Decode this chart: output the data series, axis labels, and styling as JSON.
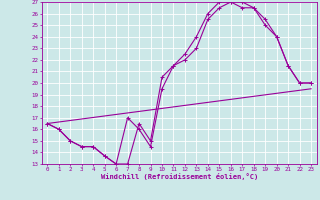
{
  "xlabel": "Windchill (Refroidissement éolien,°C)",
  "background_color": "#cce8e8",
  "line_color": "#990099",
  "grid_color": "#ffffff",
  "xlim": [
    -0.5,
    23.5
  ],
  "ylim": [
    13,
    27
  ],
  "xticks": [
    0,
    1,
    2,
    3,
    4,
    5,
    6,
    7,
    8,
    9,
    10,
    11,
    12,
    13,
    14,
    15,
    16,
    17,
    18,
    19,
    20,
    21,
    22,
    23
  ],
  "yticks": [
    13,
    14,
    15,
    16,
    17,
    18,
    19,
    20,
    21,
    22,
    23,
    24,
    25,
    26,
    27
  ],
  "line1_x": [
    0,
    1,
    2,
    3,
    4,
    5,
    6,
    7,
    8,
    9,
    10,
    11,
    12,
    13,
    14,
    15,
    16,
    17,
    18,
    19,
    20,
    21,
    22,
    23
  ],
  "line1_y": [
    16.5,
    16.0,
    15.0,
    14.5,
    14.5,
    13.7,
    13.0,
    13.0,
    16.5,
    15.0,
    20.5,
    21.5,
    22.5,
    24.0,
    26.0,
    27.0,
    27.0,
    27.0,
    26.5,
    25.5,
    24.0,
    21.5,
    20.0,
    20.0
  ],
  "line2_x": [
    0,
    1,
    2,
    3,
    4,
    5,
    6,
    7,
    8,
    9,
    10,
    11,
    12,
    13,
    14,
    15,
    16,
    17,
    18,
    19,
    20,
    21,
    22,
    23
  ],
  "line2_y": [
    16.5,
    16.0,
    15.0,
    14.5,
    14.5,
    13.7,
    13.0,
    17.0,
    16.0,
    14.5,
    19.5,
    21.5,
    22.0,
    23.0,
    25.5,
    26.5,
    27.0,
    26.5,
    26.5,
    25.0,
    24.0,
    21.5,
    20.0,
    20.0
  ],
  "line3_x": [
    0,
    23
  ],
  "line3_y": [
    16.5,
    19.5
  ]
}
